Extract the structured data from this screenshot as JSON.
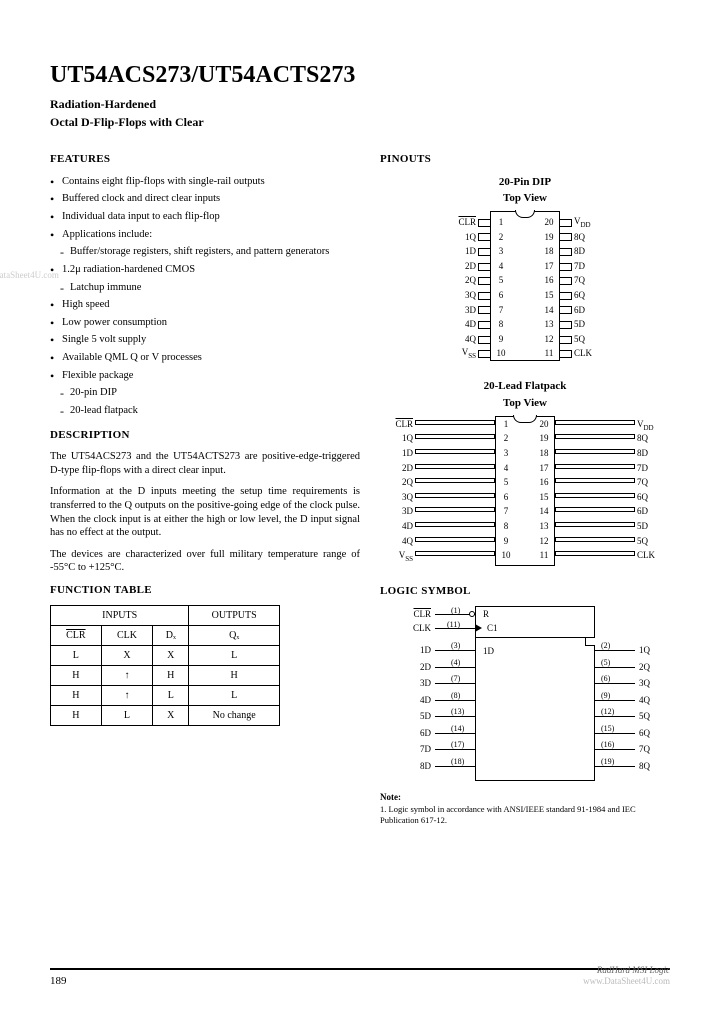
{
  "header": {
    "title": "UT54ACS273/UT54ACTS273",
    "subtitle1": "Radiation-Hardened",
    "subtitle2": "Octal D-Flip-Flops with Clear"
  },
  "watermark": "www.DataSheet4U.com",
  "features": {
    "head": "FEATURES",
    "items": [
      {
        "t": "Contains eight flip-flops with single-rail outputs"
      },
      {
        "t": "Buffered clock and direct clear inputs"
      },
      {
        "t": "Individual data input to each flip-flop"
      },
      {
        "t": "Applications include:"
      },
      {
        "t": "Buffer/storage registers, shift registers, and pattern generators",
        "sub": true
      },
      {
        "t": "1.2μ radiation-hardened CMOS"
      },
      {
        "t": "Latchup immune",
        "sub": true
      },
      {
        "t": "High speed"
      },
      {
        "t": "Low power consumption"
      },
      {
        "t": "Single 5 volt supply"
      },
      {
        "t": "Available QML Q or V processes"
      },
      {
        "t": "Flexible package"
      },
      {
        "t": "20-pin DIP",
        "sub": true
      },
      {
        "t": "20-lead flatpack",
        "sub": true
      }
    ]
  },
  "description": {
    "head": "DESCRIPTION",
    "p1": "The UT54ACS273 and the UT54ACTS273 are positive-edge-triggered D-type flip-flops with a direct clear input.",
    "p2": "Information at the D inputs meeting the setup time requirements is transferred to the Q outputs on the positive-going edge of the clock pulse. When the clock input is at either the high or low level, the D input signal has no effect at the output.",
    "p3": "The devices are characterized over full military temperature range of -55°C to +125°C."
  },
  "ftable": {
    "head": "FUNCTION TABLE",
    "grp1": "INPUTS",
    "grp2": "OUTPUTS",
    "h1": "CLR",
    "h2": "CLK",
    "h3": "Dₓ",
    "h4": "Qₓ",
    "rows": [
      [
        "L",
        "X",
        "X",
        "L"
      ],
      [
        "H",
        "↑",
        "H",
        "H"
      ],
      [
        "H",
        "↑",
        "L",
        "L"
      ],
      [
        "H",
        "L",
        "X",
        "No change"
      ]
    ]
  },
  "pinouts": {
    "head": "PINOUTS",
    "dip_head1": "20-Pin DIP",
    "dip_head2": "Top View",
    "fp_head1": "20-Lead Flatpack",
    "fp_head2": "Top View",
    "left": [
      "CLR",
      "1Q",
      "1D",
      "2D",
      "2Q",
      "3Q",
      "3D",
      "4D",
      "4Q",
      "VSS"
    ],
    "right": [
      "VDD",
      "8Q",
      "8D",
      "7D",
      "7Q",
      "6Q",
      "6D",
      "5D",
      "5Q",
      "CLK"
    ],
    "lnums": [
      "1",
      "2",
      "3",
      "4",
      "5",
      "6",
      "7",
      "8",
      "9",
      "10"
    ],
    "rnums": [
      "20",
      "19",
      "18",
      "17",
      "16",
      "15",
      "14",
      "13",
      "12",
      "11"
    ]
  },
  "logic": {
    "head": "LOGIC SYMBOL",
    "clr": "CLR",
    "clk": "CLK",
    "r": "R",
    "c1": "C1",
    "oneD": "1D",
    "clrnum": "(1)",
    "clknum": "(11)",
    "dlabels": [
      "1D",
      "2D",
      "3D",
      "4D",
      "5D",
      "6D",
      "7D",
      "8D"
    ],
    "qlabels": [
      "1Q",
      "2Q",
      "3Q",
      "4Q",
      "5Q",
      "6Q",
      "7Q",
      "8Q"
    ],
    "dnums": [
      "(3)",
      "(4)",
      "(7)",
      "(8)",
      "(13)",
      "(14)",
      "(17)",
      "(18)"
    ],
    "qnums": [
      "(2)",
      "(5)",
      "(6)",
      "(9)",
      "(12)",
      "(15)",
      "(16)",
      "(19)"
    ]
  },
  "note": {
    "head": "Note:",
    "text": "1. Logic symbol in accordance with ANSI/IEEE standard 91-1984 and IEC Publication 617-12."
  },
  "footer": {
    "page": "189",
    "brand": "RadHard MSI Logic",
    "wm": "www.DataSheet4U.com"
  }
}
